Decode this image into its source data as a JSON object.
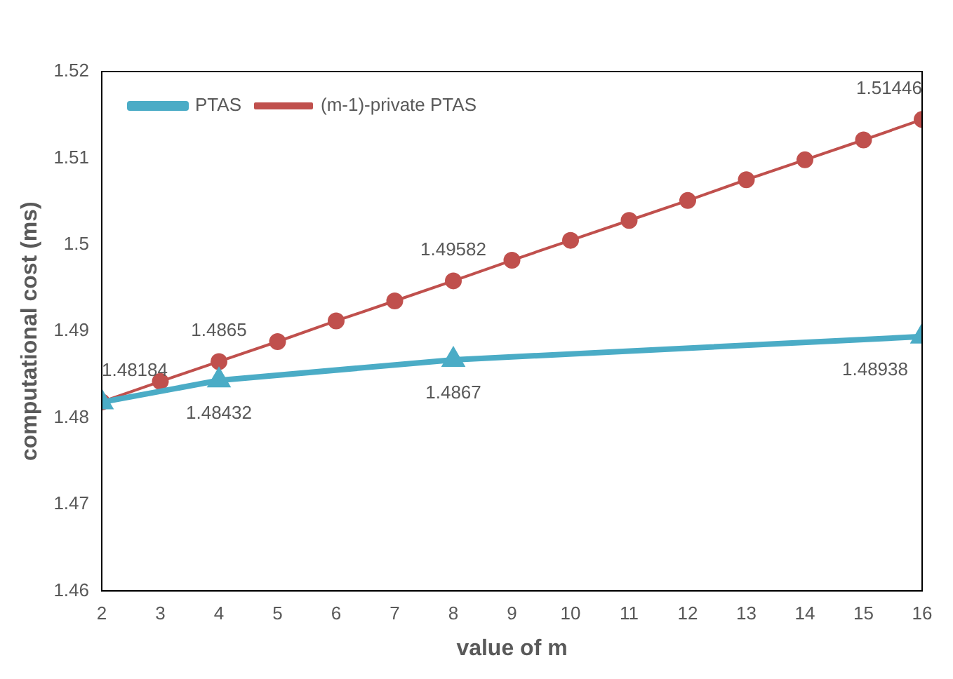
{
  "chart_data": {
    "type": "line",
    "xlabel": "value of m",
    "ylabel": "computational cost (ms)",
    "xlim": [
      2,
      16
    ],
    "xticks": [
      2,
      3,
      4,
      5,
      6,
      7,
      8,
      9,
      10,
      11,
      12,
      13,
      14,
      15,
      16
    ],
    "ylim": [
      1.46,
      1.52
    ],
    "yticks": [
      1.46,
      1.47,
      1.48,
      1.49,
      1.5,
      1.51,
      1.52
    ],
    "grid": false,
    "legend": "top left",
    "series": [
      {
        "name": "PTAS",
        "color": "#4bacc6",
        "marker": "triangle",
        "x": [
          2,
          4,
          8,
          16
        ],
        "values": [
          1.4818,
          1.48432,
          1.4867,
          1.48938
        ],
        "value_labels": [
          null,
          "1.48432",
          "1.4867",
          "1.48938"
        ]
      },
      {
        "name": "(m-1)-private PTAS",
        "color": "#c0504d",
        "marker": "circle",
        "x": [
          2,
          3,
          4,
          5,
          6,
          7,
          8,
          9,
          10,
          11,
          12,
          13,
          14,
          15,
          16
        ],
        "values": [
          1.48184,
          1.4842,
          1.4865,
          1.4888,
          1.4912,
          1.4935,
          1.49582,
          1.4982,
          1.5005,
          1.5028,
          1.5051,
          1.5075,
          1.5098,
          1.5121,
          1.51446
        ],
        "value_labels": [
          "1.48184",
          null,
          "1.4865",
          null,
          null,
          null,
          "1.49582",
          null,
          null,
          null,
          null,
          null,
          null,
          null,
          "1.51446"
        ]
      }
    ]
  }
}
